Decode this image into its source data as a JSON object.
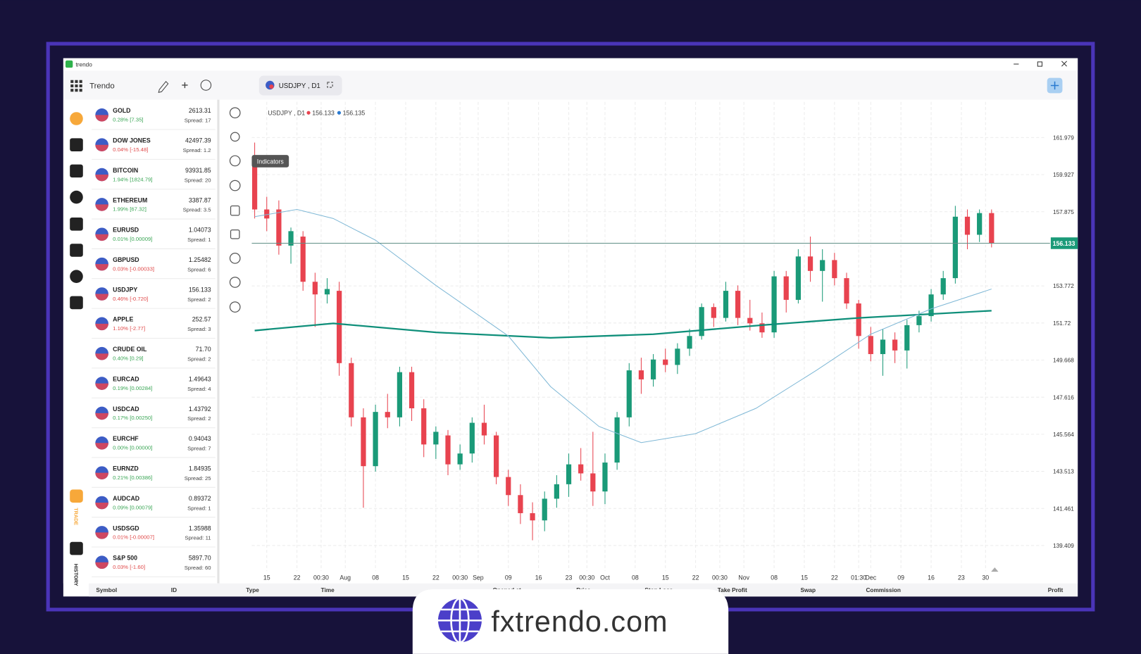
{
  "window": {
    "title": "trendo"
  },
  "toolbar": {
    "brand": "Trendo",
    "tab": "USDJPY , D1"
  },
  "sidebar": {
    "trade": "TRADE",
    "history": "HISTORY"
  },
  "watchlist": [
    {
      "symbol": "GOLD",
      "change": "0.28% [7.35]",
      "trend": "up",
      "price": "2613.31",
      "spread": "Spread: 17"
    },
    {
      "symbol": "DOW JONES",
      "change": "0.04% [-15.48]",
      "trend": "down",
      "price": "42497.39",
      "spread": "Spread: 1.2"
    },
    {
      "symbol": "BITCOIN",
      "change": "1.94% [1824.79]",
      "trend": "up",
      "price": "93931.85",
      "spread": "Spread: 20"
    },
    {
      "symbol": "ETHEREUM",
      "change": "1.99% [67.32]",
      "trend": "up",
      "price": "3387.87",
      "spread": "Spread: 3.5"
    },
    {
      "symbol": "EURUSD",
      "change": "0.01% [0.00009]",
      "trend": "up",
      "price": "1.04073",
      "spread": "Spread: 1"
    },
    {
      "symbol": "GBPUSD",
      "change": "0.03% [-0.00033]",
      "trend": "down",
      "price": "1.25482",
      "spread": "Spread: 6"
    },
    {
      "symbol": "USDJPY",
      "change": "0.46% [-0.720]",
      "trend": "down",
      "price": "156.133",
      "spread": "Spread: 2"
    },
    {
      "symbol": "APPLE",
      "change": "1.10% [-2.77]",
      "trend": "down",
      "price": "252.57",
      "spread": "Spread: 3"
    },
    {
      "symbol": "CRUDE OIL",
      "change": "0.40% [0.29]",
      "trend": "up",
      "price": "71.70",
      "spread": "Spread: 2"
    },
    {
      "symbol": "EURCAD",
      "change": "0.19% [0.00284]",
      "trend": "up",
      "price": "1.49643",
      "spread": "Spread: 4"
    },
    {
      "symbol": "USDCAD",
      "change": "0.17% [0.00250]",
      "trend": "up",
      "price": "1.43792",
      "spread": "Spread: 2"
    },
    {
      "symbol": "EURCHF",
      "change": "0.00% [0.00000]",
      "trend": "up",
      "price": "0.94043",
      "spread": "Spread: 7"
    },
    {
      "symbol": "EURNZD",
      "change": "0.21% [0.00386]",
      "trend": "up",
      "price": "1.84935",
      "spread": "Spread: 25"
    },
    {
      "symbol": "AUDCAD",
      "change": "0.09% [0.00079]",
      "trend": "up",
      "price": "0.89372",
      "spread": "Spread: 1"
    },
    {
      "symbol": "USDSGD",
      "change": "0.01% [-0.00007]",
      "trend": "down",
      "price": "1.35988",
      "spread": "Spread: 11"
    },
    {
      "symbol": "S&P 500",
      "change": "0.03% [-1.60]",
      "trend": "down",
      "price": "5897.70",
      "spread": "Spread: 60"
    }
  ],
  "chart_data": {
    "type": "candlestick",
    "legend": "USDJPY , D1",
    "bid": 156.133,
    "ask": 156.135,
    "tooltip": "Indicators",
    "last_price": 156.133,
    "up_color": "#1a9a78",
    "down_color": "#e8434f",
    "grid": true,
    "xlim": [
      -0.24,
      65.36
    ],
    "ylim": [
      138.0,
      163.95
    ],
    "yticks": [
      161.979,
      159.927,
      157.875,
      153.772,
      151.72,
      149.668,
      147.616,
      145.564,
      143.513,
      141.461,
      139.409
    ],
    "xticks": [
      {
        "value": 1,
        "label": "15"
      },
      {
        "value": 3.5,
        "label": "22"
      },
      {
        "value": 5.5,
        "label": "00:30"
      },
      {
        "value": 7.5,
        "label": "Aug"
      },
      {
        "value": 10,
        "label": "08"
      },
      {
        "value": 12.5,
        "label": "15"
      },
      {
        "value": 15,
        "label": "22"
      },
      {
        "value": 17,
        "label": "00:30"
      },
      {
        "value": 18.5,
        "label": "Sep"
      },
      {
        "value": 21,
        "label": "09"
      },
      {
        "value": 23.5,
        "label": "16"
      },
      {
        "value": 26,
        "label": "23"
      },
      {
        "value": 27.5,
        "label": "00:30"
      },
      {
        "value": 29,
        "label": "Oct"
      },
      {
        "value": 31.5,
        "label": "08"
      },
      {
        "value": 34,
        "label": "15"
      },
      {
        "value": 36.5,
        "label": "22"
      },
      {
        "value": 38.5,
        "label": "00:30"
      },
      {
        "value": 40.5,
        "label": "Nov"
      },
      {
        "value": 43,
        "label": "08"
      },
      {
        "value": 45.5,
        "label": "15"
      },
      {
        "value": 48,
        "label": "22"
      },
      {
        "value": 50,
        "label": "01:30"
      },
      {
        "value": 51,
        "label": "Dec"
      },
      {
        "value": 53.5,
        "label": "09"
      },
      {
        "value": 56,
        "label": "16"
      },
      {
        "value": 58.5,
        "label": "23"
      },
      {
        "value": 60.5,
        "label": "30"
      }
    ],
    "open": [
      160.5,
      158.0,
      158.0,
      156.0,
      156.5,
      154.0,
      153.3,
      153.5,
      149.5,
      146.5,
      143.8,
      146.8,
      146.5,
      149.0,
      147.0,
      145.0,
      145.5,
      143.9,
      144.5,
      146.2,
      145.5,
      143.2,
      142.2,
      141.2,
      140.8,
      142.0,
      142.8,
      143.9,
      143.4,
      142.4,
      144.0,
      146.5,
      149.1,
      148.6,
      149.7,
      149.4,
      150.3,
      151.0,
      152.6,
      152.0,
      153.5,
      152.0,
      151.7,
      151.2,
      154.3,
      153.0,
      155.4,
      154.6,
      155.2,
      154.2,
      152.8,
      151.0,
      150.0,
      150.8,
      150.2,
      151.6,
      152.1,
      153.3,
      154.2,
      157.6,
      156.6,
      157.8
    ],
    "high": [
      161.7,
      158.7,
      158.5,
      157.0,
      156.8,
      154.5,
      154.2,
      154.0,
      149.8,
      147.0,
      147.2,
      147.8,
      149.3,
      149.3,
      147.5,
      146.0,
      145.8,
      145.0,
      146.5,
      147.2,
      145.7,
      143.6,
      142.8,
      141.8,
      142.4,
      143.3,
      144.5,
      144.8,
      145.7,
      144.5,
      146.8,
      149.5,
      149.8,
      150.0,
      150.3,
      150.6,
      151.4,
      152.8,
      152.8,
      154.0,
      153.8,
      153.0,
      152.3,
      154.6,
      154.6,
      155.8,
      156.5,
      155.8,
      155.6,
      154.5,
      153.0,
      151.5,
      151.4,
      151.2,
      151.9,
      152.4,
      153.6,
      154.6,
      158.2,
      158.0,
      158.0,
      158.0
    ],
    "low": [
      157.5,
      156.8,
      155.5,
      155.0,
      153.5,
      151.5,
      152.8,
      148.8,
      146.0,
      141.5,
      143.5,
      145.9,
      146.0,
      146.3,
      144.3,
      144.2,
      143.3,
      143.6,
      144.0,
      145.0,
      142.8,
      141.6,
      140.6,
      139.7,
      140.2,
      141.5,
      142.1,
      143.0,
      141.6,
      141.7,
      143.6,
      146.0,
      147.8,
      148.2,
      149.0,
      148.9,
      149.9,
      150.8,
      151.5,
      151.8,
      151.6,
      151.3,
      150.9,
      150.9,
      152.3,
      152.8,
      154.0,
      152.9,
      153.8,
      152.5,
      150.3,
      149.6,
      148.8,
      149.5,
      149.2,
      151.2,
      151.8,
      153.0,
      153.9,
      155.8,
      156.2,
      155.9
    ],
    "close": [
      158.0,
      157.5,
      156.0,
      156.8,
      154.0,
      153.3,
      153.6,
      149.5,
      146.5,
      143.8,
      146.8,
      146.5,
      149.0,
      147.0,
      145.0,
      145.7,
      143.9,
      144.5,
      146.2,
      145.5,
      143.2,
      142.2,
      141.2,
      140.8,
      142.0,
      142.8,
      143.9,
      143.4,
      142.4,
      144.0,
      146.5,
      149.1,
      148.6,
      149.7,
      149.4,
      150.3,
      151.0,
      152.6,
      152.0,
      153.5,
      152.0,
      151.7,
      151.2,
      154.3,
      153.0,
      155.4,
      154.6,
      155.2,
      154.2,
      152.8,
      151.0,
      150.0,
      150.8,
      150.2,
      151.6,
      152.1,
      153.3,
      154.2,
      157.6,
      156.6,
      157.8,
      156.133
    ],
    "lines": [
      {
        "color": "#0f8f7a",
        "width": 2.2,
        "x": [
          0,
          6.5,
          15,
          24.5,
          33,
          42,
          50,
          61
        ],
        "values": [
          151.3,
          151.7,
          151.2,
          150.9,
          151.1,
          151.6,
          152.0,
          152.4
        ]
      },
      {
        "color": "#7fb8d6",
        "width": 1,
        "x": [
          0,
          3.5,
          6.5,
          10,
          15,
          21,
          24.5,
          28.5,
          32,
          36.5,
          41.5,
          46.5,
          51,
          56,
          61
        ],
        "values": [
          157.6,
          158.0,
          157.5,
          156.3,
          153.8,
          151.0,
          148.2,
          146.0,
          145.1,
          145.6,
          147.0,
          149.1,
          151.1,
          152.5,
          153.6
        ]
      }
    ]
  },
  "positions": {
    "columns": [
      "Symbol",
      "ID",
      "Type",
      "Time",
      "Opened at",
      "Price",
      "Stop Loss",
      "Take Profit",
      "Swap",
      "Commission",
      "Profit"
    ]
  },
  "footer": {
    "site": "fxtrendo.com"
  }
}
